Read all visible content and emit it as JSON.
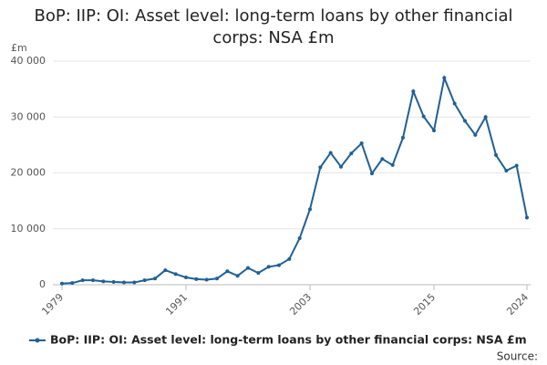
{
  "chart_data": {
    "type": "line",
    "title": "BoP: IIP: OI: Asset level: long-term loans by other financial corps: NSA £m",
    "ylabel": "£m",
    "source_label": "Source:",
    "x": [
      1979,
      1980,
      1981,
      1982,
      1983,
      1984,
      1985,
      1986,
      1987,
      1988,
      1989,
      1990,
      1991,
      1992,
      1993,
      1994,
      1995,
      1996,
      1997,
      1998,
      1999,
      2000,
      2001,
      2002,
      2003,
      2004,
      2005,
      2006,
      2007,
      2008,
      2009,
      2010,
      2011,
      2012,
      2013,
      2014,
      2015,
      2016,
      2017,
      2018,
      2019,
      2020,
      2021,
      2022,
      2023,
      2024
    ],
    "series": [
      {
        "name": "BoP: IIP: OI: Asset level: long-term loans by other financial corps: NSA £m",
        "color": "#206095",
        "values": [
          200,
          300,
          800,
          800,
          600,
          500,
          400,
          400,
          800,
          1100,
          2600,
          1900,
          1300,
          1000,
          900,
          1100,
          2400,
          1600,
          3000,
          2100,
          3200,
          3500,
          4600,
          8300,
          13500,
          21000,
          23600,
          21100,
          23500,
          25300,
          19900,
          22500,
          21400,
          26300,
          34600,
          30100,
          27600,
          37000,
          32400,
          29300,
          26800,
          30000,
          23200,
          20400,
          21300,
          12000
        ]
      }
    ],
    "xlim": [
      1979,
      2024
    ],
    "xticks": [
      1979,
      1991,
      2003,
      2015,
      2024
    ],
    "ylim": [
      0,
      40000
    ],
    "yticks": [
      0,
      {
        "value": 10000,
        "label": "10 000"
      },
      {
        "value": 20000,
        "label": "20 000"
      },
      {
        "value": 30000,
        "label": "30 000"
      },
      {
        "value": 40000,
        "label": "40 000"
      }
    ],
    "grid": true
  }
}
